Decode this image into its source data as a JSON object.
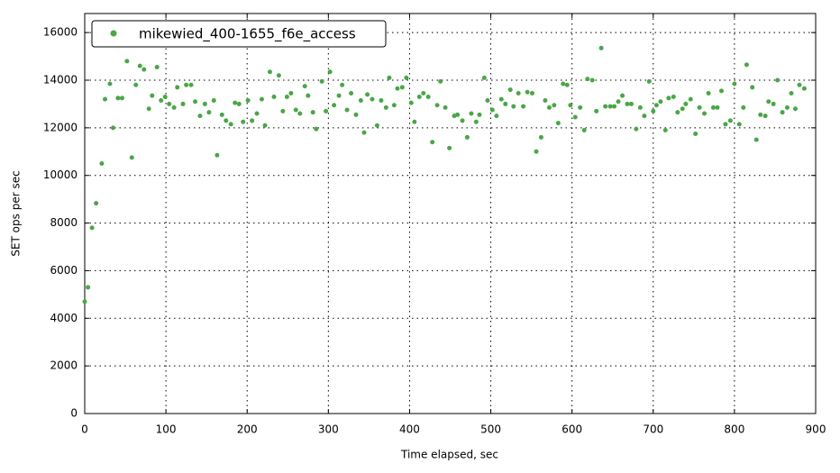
{
  "chart_data": {
    "type": "scatter",
    "x_label": "Time elapsed, sec",
    "y_label": "SET ops per sec",
    "xlim": [
      0,
      900
    ],
    "ylim": [
      0,
      16800
    ],
    "xticks": [
      0,
      100,
      200,
      300,
      400,
      500,
      600,
      700,
      800,
      900
    ],
    "yticks": [
      0,
      2000,
      4000,
      6000,
      8000,
      10000,
      12000,
      14000,
      16000
    ],
    "grid": true,
    "legend": "upper left",
    "series": [
      {
        "name": "mikewied_400-1655_f6e_access",
        "color": "#4aa647",
        "x": [
          0,
          4,
          9,
          14,
          21,
          25,
          31,
          35,
          41,
          46,
          52,
          58,
          63,
          68,
          73,
          79,
          83,
          89,
          94,
          99,
          104,
          110,
          114,
          121,
          125,
          131,
          136,
          142,
          148,
          153,
          159,
          163,
          169,
          174,
          180,
          185,
          190,
          195,
          201,
          206,
          212,
          218,
          222,
          228,
          233,
          239,
          244,
          249,
          254,
          260,
          265,
          271,
          275,
          281,
          285,
          292,
          297,
          302,
          307,
          313,
          317,
          323,
          328,
          334,
          340,
          344,
          348,
          354,
          360,
          365,
          371,
          375,
          381,
          385,
          391,
          396,
          402,
          406,
          412,
          417,
          423,
          428,
          434,
          438,
          444,
          449,
          455,
          459,
          465,
          471,
          476,
          482,
          486,
          492,
          496,
          502,
          507,
          513,
          518,
          524,
          528,
          534,
          540,
          545,
          551,
          556,
          562,
          567,
          572,
          578,
          583,
          589,
          594,
          598,
          604,
          610,
          615,
          619,
          625,
          630,
          636,
          641,
          647,
          652,
          657,
          662,
          668,
          673,
          679,
          684,
          689,
          695,
          700,
          704,
          709,
          715,
          719,
          725,
          730,
          736,
          740,
          746,
          752,
          757,
          763,
          768,
          774,
          779,
          784,
          789,
          795,
          800,
          806,
          811,
          815,
          822,
          827,
          832,
          838,
          842,
          848,
          853,
          859,
          865,
          870,
          875,
          880,
          886
        ],
        "values": [
          4700,
          5300,
          7800,
          8830,
          10500,
          13200,
          13850,
          12000,
          13250,
          13250,
          14800,
          10750,
          13800,
          14600,
          14450,
          12800,
          13350,
          14550,
          13150,
          13300,
          13000,
          12850,
          13700,
          13000,
          13800,
          13800,
          13100,
          12500,
          13000,
          12650,
          13150,
          10850,
          12550,
          12300,
          12150,
          13050,
          13000,
          12250,
          13150,
          12300,
          12600,
          13200,
          12100,
          14350,
          13300,
          14200,
          12700,
          13300,
          13450,
          12750,
          12600,
          13750,
          13350,
          12650,
          11950,
          13950,
          12700,
          14350,
          12950,
          13350,
          13800,
          12750,
          13450,
          12550,
          13150,
          11800,
          13400,
          13200,
          12100,
          13150,
          12850,
          14100,
          12950,
          13650,
          13700,
          14100,
          13050,
          12250,
          13300,
          13450,
          13300,
          11400,
          12950,
          13950,
          12850,
          11150,
          12500,
          12550,
          12300,
          11600,
          12600,
          12250,
          12550,
          14100,
          13150,
          12750,
          12500,
          13200,
          13000,
          13600,
          12900,
          13450,
          12900,
          13500,
          13450,
          11000,
          11600,
          13150,
          12850,
          12950,
          12200,
          13850,
          13800,
          12950,
          12450,
          12850,
          11900,
          14050,
          14000,
          12700,
          15350,
          12900,
          12900,
          12900,
          13100,
          13350,
          13000,
          13000,
          11950,
          12850,
          12500,
          13950,
          12700,
          12950,
          13100,
          11900,
          13250,
          13300,
          12650,
          12800,
          13000,
          13200,
          11750,
          12850,
          12600,
          13450,
          12850,
          12850,
          13550,
          12150,
          12300,
          13850,
          12150,
          12850,
          14650,
          13700,
          11500,
          12550,
          12500,
          13100,
          13000,
          14000,
          12650,
          12850,
          13450,
          12800,
          13800,
          13650
        ]
      }
    ]
  }
}
